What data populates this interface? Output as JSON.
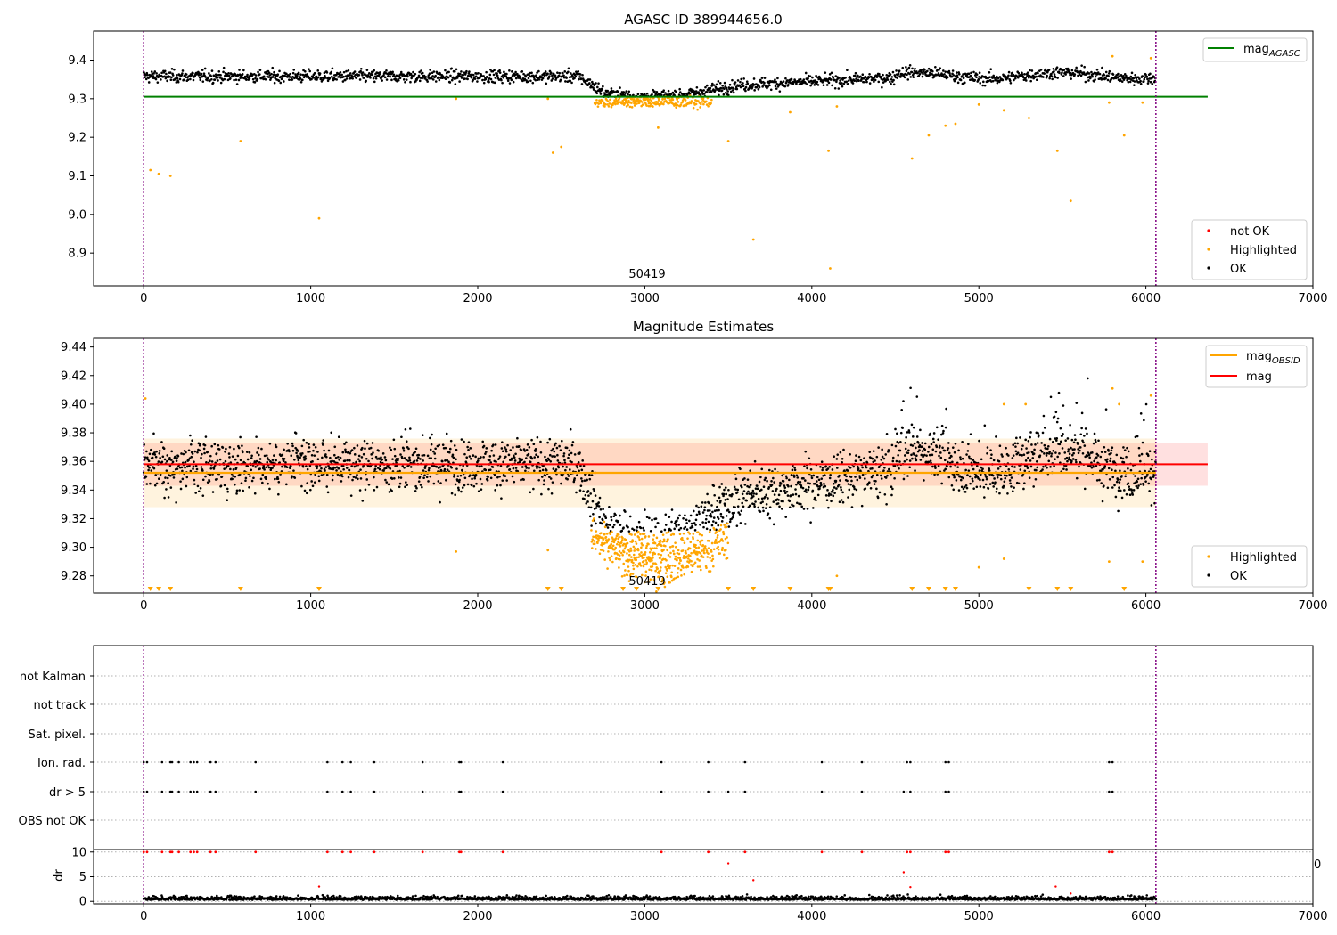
{
  "chart_data": [
    {
      "type": "scatter",
      "title": "AGASC ID 389944656.0",
      "xlabel": "",
      "ylabel": "",
      "xlim": [
        -300,
        7000
      ],
      "ylim": [
        8.815,
        9.475
      ],
      "x_ticks": [
        0,
        1000,
        2000,
        3000,
        4000,
        5000,
        6000,
        7000
      ],
      "y_ticks": [
        8.9,
        9.0,
        9.1,
        9.2,
        9.3,
        9.4
      ],
      "grid": false,
      "legend_line": {
        "label": "mag",
        "subscript": "AGASC",
        "placement": "top-right"
      },
      "legend_points": {
        "placement": "bottom-right",
        "entries": [
          "not OK",
          "Highlighted",
          "OK"
        ]
      },
      "annotation": "50419",
      "colors": {
        "ok": "#000000",
        "highlighted": "#ffa500",
        "not_ok": "#ff0000",
        "agasc_line": "#008000",
        "obsid_boundary": "#800080"
      },
      "lines": [
        {
          "name": "mag_AGASC",
          "y": 9.305,
          "x": [
            0,
            6370
          ]
        }
      ],
      "obsid_boundaries": [
        0,
        6060
      ],
      "series": [
        {
          "name": "OK",
          "description": "dense band ~9.36 from 0 to 2600, dipping to ~9.31 near 3000 and recovering to ~9.36–9.38 through 6060"
        },
        {
          "name": "Highlighted",
          "description": "cluster ~9.29 between 2700 and 3400 plus outliers"
        },
        {
          "name": "not OK",
          "description": "none visible"
        }
      ],
      "highlighted_outliers": [
        [
          40,
          9.115
        ],
        [
          90,
          9.105
        ],
        [
          160,
          9.1
        ],
        [
          580,
          9.19
        ],
        [
          1050,
          8.99
        ],
        [
          1870,
          9.3
        ],
        [
          2420,
          9.3
        ],
        [
          2450,
          9.16
        ],
        [
          2500,
          9.175
        ],
        [
          3080,
          9.225
        ],
        [
          3500,
          9.19
        ],
        [
          3650,
          8.935
        ],
        [
          3870,
          9.265
        ],
        [
          4100,
          9.165
        ],
        [
          4110,
          8.86
        ],
        [
          4150,
          9.28
        ],
        [
          4600,
          9.145
        ],
        [
          4700,
          9.205
        ],
        [
          4800,
          9.23
        ],
        [
          4860,
          9.235
        ],
        [
          5000,
          9.285
        ],
        [
          5150,
          9.27
        ],
        [
          5300,
          9.25
        ],
        [
          5470,
          9.165
        ],
        [
          5550,
          9.035
        ],
        [
          5780,
          9.29
        ],
        [
          5870,
          9.205
        ],
        [
          5980,
          9.29
        ],
        [
          5800,
          9.41
        ],
        [
          6030,
          9.405
        ]
      ]
    },
    {
      "type": "scatter",
      "title": "Magnitude Estimates",
      "xlabel": "",
      "ylabel": "",
      "xlim": [
        -300,
        7000
      ],
      "ylim": [
        9.268,
        9.446
      ],
      "x_ticks": [
        0,
        1000,
        2000,
        3000,
        4000,
        5000,
        6000,
        7000
      ],
      "y_ticks": [
        9.28,
        9.3,
        9.32,
        9.34,
        9.36,
        9.38,
        9.4,
        9.42,
        9.44
      ],
      "grid": false,
      "legend_lines": {
        "placement": "top-right",
        "entries": [
          {
            "label": "mag",
            "subscript": "OBSID",
            "color": "#ffa500"
          },
          {
            "label": "mag",
            "subscript": "",
            "color": "#ff0000"
          }
        ]
      },
      "legend_points": {
        "placement": "bottom-right",
        "entries": [
          "Highlighted",
          "OK"
        ]
      },
      "annotation": "50419",
      "colors": {
        "ok": "#000000",
        "highlighted": "#ffa500",
        "mag_line": "#ff0000",
        "obsid_line": "#ffa500"
      },
      "lines": [
        {
          "name": "mag_OBSID",
          "y": 9.352,
          "x": [
            0,
            6060
          ],
          "band": [
            9.328,
            9.376
          ]
        },
        {
          "name": "mag",
          "y": 9.358,
          "x": [
            0,
            6370
          ],
          "band": [
            9.343,
            9.373
          ]
        }
      ],
      "obsid_boundaries": [
        0,
        6060
      ],
      "series": [
        {
          "name": "OK",
          "description": "band ~9.335–9.385 from 0 to 2600, dipping to ~9.31 near 2800–3300, recovering ~9.33–9.38 to 6060"
        },
        {
          "name": "Highlighted",
          "description": "cluster ~9.27–9.31 between 2700 and 3500; below-axis markers at bottom edge"
        }
      ],
      "below_axis_markers_x": [
        40,
        90,
        160,
        580,
        1050,
        2420,
        2500,
        2870,
        2950,
        3080,
        3500,
        3650,
        3870,
        4100,
        4110,
        4600,
        4700,
        4800,
        4860,
        5300,
        5470,
        5550,
        5870
      ],
      "highlighted_outliers": [
        [
          1870,
          9.297
        ],
        [
          2420,
          9.298
        ],
        [
          4150,
          9.28
        ],
        [
          5000,
          9.286
        ],
        [
          5150,
          9.292
        ],
        [
          5780,
          9.29
        ],
        [
          5980,
          9.29
        ],
        [
          5150,
          9.4
        ],
        [
          5280,
          9.4
        ],
        [
          5800,
          9.411
        ],
        [
          5840,
          9.4
        ],
        [
          6030,
          9.406
        ],
        [
          10,
          9.404
        ]
      ]
    },
    {
      "type": "scatter",
      "title": "",
      "xlabel": "",
      "ylabel": "",
      "xlim": [
        -300,
        7000
      ],
      "categories": [
        "not Kalman",
        "not track",
        "Sat. pixel.",
        "Ion. rad.",
        "dr > 5",
        "OBS not OK"
      ],
      "grid": true,
      "flag_x": {
        "Ion. rad.": [
          0,
          20,
          110,
          160,
          170,
          210,
          280,
          300,
          320,
          400,
          430,
          670,
          1100,
          1190,
          1240,
          1380,
          1670,
          1890,
          1900,
          2150,
          3100,
          3380,
          3600,
          4060,
          4300,
          4570,
          4590,
          4800,
          4820,
          5780,
          5800
        ],
        "dr > 5": [
          0,
          20,
          110,
          160,
          170,
          210,
          280,
          300,
          320,
          400,
          430,
          670,
          1100,
          1190,
          1240,
          1380,
          1670,
          1890,
          1900,
          2150,
          3100,
          3380,
          3500,
          3600,
          4060,
          4300,
          4550,
          4590,
          4800,
          4820,
          5780,
          5800
        ]
      },
      "obsid_boundaries": [
        0,
        6060
      ]
    },
    {
      "type": "scatter",
      "title": "",
      "xlabel": "",
      "ylabel": "dr",
      "xlim": [
        -300,
        7000
      ],
      "ylim": [
        -0.5,
        10.5
      ],
      "x_ticks": [
        0,
        1000,
        2000,
        3000,
        4000,
        5000,
        6000,
        7000
      ],
      "y_ticks": [
        0,
        5,
        10
      ],
      "grid": true,
      "colors": {
        "ok": "#000000",
        "not_ok": "#ff0000"
      },
      "series": [
        {
          "name": "OK",
          "description": "dr ~0–2 spread across 0–6060"
        },
        {
          "name": "not OK",
          "description": "dr clipped at 10 at flagged times plus a few mid values"
        }
      ],
      "not_ok_points": [
        [
          1050,
          3.0
        ],
        [
          3500,
          7.7
        ],
        [
          3650,
          4.3
        ],
        [
          4550,
          5.9
        ],
        [
          4590,
          2.9
        ],
        [
          5460,
          3.0
        ],
        [
          5550,
          1.6
        ]
      ],
      "edge_label": "0"
    }
  ]
}
